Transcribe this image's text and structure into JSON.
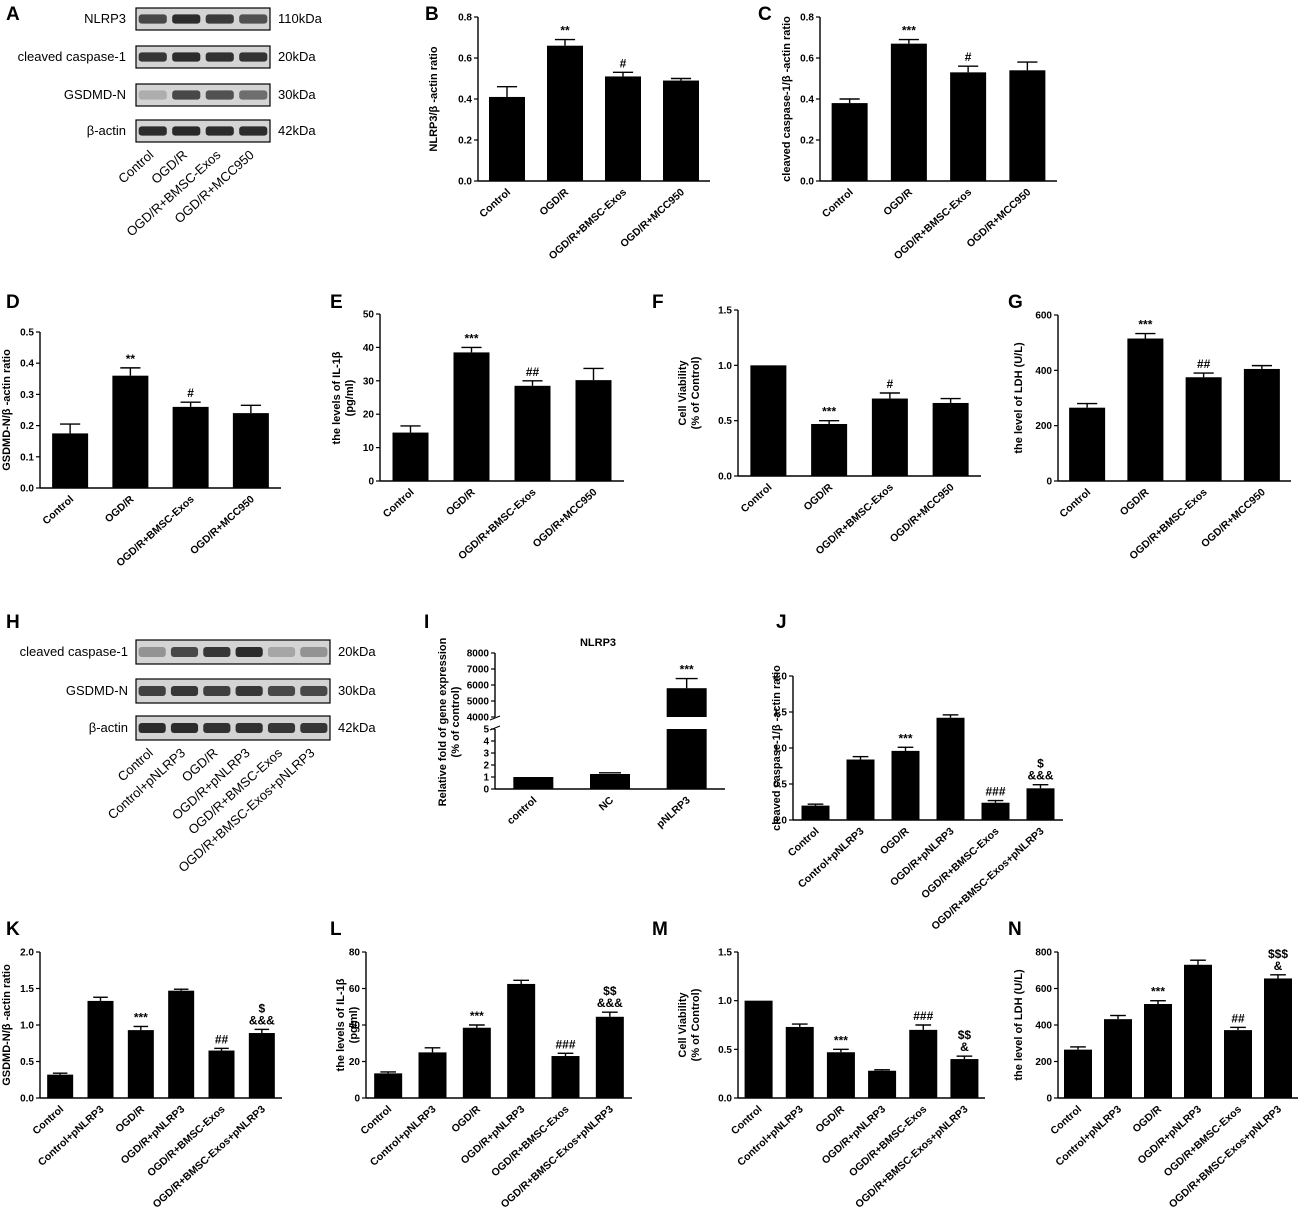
{
  "colors": {
    "bar": "#000000",
    "axis": "#000000",
    "blot_background": "#d4d4d4",
    "band": "#1a1a1a"
  },
  "panel_letters": [
    "A",
    "B",
    "C",
    "D",
    "E",
    "F",
    "G",
    "H",
    "I",
    "J",
    "K",
    "L",
    "M",
    "N"
  ],
  "blot_A": {
    "rows": [
      {
        "name": "NLRP3",
        "kda": "110kDa"
      },
      {
        "name": "cleaved caspase-1",
        "kda": "20kDa"
      },
      {
        "name": "GSDMD-N",
        "kda": "30kDa"
      },
      {
        "name": "β-actin",
        "kda": "42kDa"
      }
    ],
    "lanes": [
      "Control",
      "OGD/R",
      "OGD/R+BMSC-Exos",
      "OGD/R+MCC950"
    ]
  },
  "blot_H": {
    "rows": [
      {
        "name": "cleaved caspase-1",
        "kda": "20kDa"
      },
      {
        "name": "GSDMD-N",
        "kda": "30kDa"
      },
      {
        "name": "β-actin",
        "kda": "42kDa"
      }
    ],
    "lanes": [
      "Control",
      "Control+pNLRP3",
      "OGD/R",
      "OGD/R+pNLRP3",
      "OGD/R+BMSC-Exos",
      "OGD/R+BMSC-Exos+pNLRP3"
    ]
  },
  "chart_data": [
    {
      "panel": "B",
      "type": "bar",
      "categories": [
        "Control",
        "OGD/R",
        "OGD/R+BMSC-Exos",
        "OGD/R+MCC950"
      ],
      "values": [
        0.41,
        0.66,
        0.51,
        0.49
      ],
      "errors": [
        0.05,
        0.03,
        0.02,
        0.01
      ],
      "sig": [
        "",
        "**",
        "#",
        ""
      ],
      "ylabel": "NLRP3/β -actin ratio",
      "ylim": [
        0,
        0.8
      ],
      "yticks": [
        "0.0",
        "0.2",
        "0.4",
        "0.6",
        "0.8"
      ]
    },
    {
      "panel": "C",
      "type": "bar",
      "categories": [
        "Control",
        "OGD/R",
        "OGD/R+BMSC-Exos",
        "OGD/R+MCC950"
      ],
      "values": [
        0.38,
        0.67,
        0.53,
        0.54
      ],
      "errors": [
        0.02,
        0.02,
        0.03,
        0.04
      ],
      "sig": [
        "",
        "***",
        "#",
        ""
      ],
      "ylabel": "cleaved caspase-1/β -actin ratio",
      "ylim": [
        0,
        0.8
      ],
      "yticks": [
        "0.0",
        "0.2",
        "0.4",
        "0.6",
        "0.8"
      ]
    },
    {
      "panel": "D",
      "type": "bar",
      "categories": [
        "Control",
        "OGD/R",
        "OGD/R+BMSC-Exos",
        "OGD/R+MCC950"
      ],
      "values": [
        0.175,
        0.36,
        0.26,
        0.24
      ],
      "errors": [
        0.03,
        0.025,
        0.015,
        0.025
      ],
      "sig": [
        "",
        "**",
        "#",
        ""
      ],
      "ylabel": "GSDMD-N/β -actin ratio",
      "ylim": [
        0,
        0.5
      ],
      "yticks": [
        "0.0",
        "0.1",
        "0.2",
        "0.3",
        "0.4",
        "0.5"
      ]
    },
    {
      "panel": "E",
      "type": "bar",
      "categories": [
        "Control",
        "OGD/R",
        "OGD/R+BMSC-Exos",
        "OGD/R+MCC950"
      ],
      "values": [
        14.5,
        38.5,
        28.5,
        30.2
      ],
      "errors": [
        2,
        1.5,
        1.5,
        3.5
      ],
      "sig": [
        "",
        "***",
        "##",
        ""
      ],
      "ylabel": "the levels of IL-1β (pg/ml)",
      "ylim": [
        0,
        50
      ],
      "yticks": [
        "0",
        "10",
        "20",
        "30",
        "40",
        "50"
      ]
    },
    {
      "panel": "F",
      "type": "bar",
      "categories": [
        "Control",
        "OGD/R",
        "OGD/R+BMSC-Exos",
        "OGD/R+MCC950"
      ],
      "values": [
        1.0,
        0.47,
        0.7,
        0.66
      ],
      "errors": [
        0,
        0.03,
        0.05,
        0.04
      ],
      "sig": [
        "",
        "***",
        "#",
        ""
      ],
      "ylabel": "Cell Viability (% of Control)",
      "ylim": [
        0,
        1.5
      ],
      "yticks": [
        "0.0",
        "0.5",
        "1.0",
        "1.5"
      ]
    },
    {
      "panel": "G",
      "type": "bar",
      "categories": [
        "Control",
        "OGD/R",
        "OGD/R+BMSC-Exos",
        "OGD/R+MCC950"
      ],
      "values": [
        265,
        515,
        375,
        405
      ],
      "errors": [
        15,
        18,
        15,
        12
      ],
      "sig": [
        "",
        "***",
        "##",
        ""
      ],
      "ylabel": "the level of LDH (U/L)",
      "ylim": [
        0,
        600
      ],
      "yticks": [
        "0",
        "200",
        "400",
        "600"
      ]
    },
    {
      "panel": "I",
      "type": "bar",
      "title": "NLRP3",
      "categories": [
        "control",
        "NC",
        "pNLRP3"
      ],
      "values": [
        1,
        1.25,
        5800
      ],
      "errors": [
        0,
        0.1,
        600
      ],
      "sig": [
        "",
        "",
        "***"
      ],
      "ylabel": "Relative fold of gene expression (% of control)",
      "broken_axis": true,
      "yticks_low": [
        "0",
        "1",
        "2",
        "3",
        "4",
        "5"
      ],
      "yticks_high": [
        "4000",
        "5000",
        "6000",
        "7000",
        "8000"
      ]
    },
    {
      "panel": "J",
      "type": "bar",
      "categories": [
        "Control",
        "Control+pNLRP3",
        "OGD/R",
        "OGD/R+pNLRP3",
        "OGD/R+BMSC-Exos",
        "OGD/R+BMSC-Exos+pNLRP3"
      ],
      "values": [
        0.2,
        0.84,
        0.96,
        1.42,
        0.24,
        0.44
      ],
      "errors": [
        0.02,
        0.04,
        0.05,
        0.04,
        0.03,
        0.05
      ],
      "sig": [
        "",
        "",
        "***",
        "",
        "###",
        "$\n&&&"
      ],
      "ylabel": "cleaved caspase-1/β -actin ratio",
      "ylim": [
        0,
        2.0
      ],
      "yticks": [
        "0.0",
        "0.5",
        "1.0",
        "1.5",
        "2.0"
      ]
    },
    {
      "panel": "K",
      "type": "bar",
      "categories": [
        "Control",
        "Control+pNLRP3",
        "OGD/R",
        "OGD/R+pNLRP3",
        "OGD/R+BMSC-Exos",
        "OGD/R+BMSC-Exos+pNLRP3"
      ],
      "values": [
        0.32,
        1.33,
        0.93,
        1.47,
        0.65,
        0.89
      ],
      "errors": [
        0.02,
        0.05,
        0.05,
        0.02,
        0.03,
        0.05
      ],
      "sig": [
        "",
        "",
        "***",
        "",
        "##",
        "$\n&&&"
      ],
      "ylabel": "GSDMD-N/β -actin ratio",
      "ylim": [
        0,
        2.0
      ],
      "yticks": [
        "0.0",
        "0.5",
        "1.0",
        "1.5",
        "2.0"
      ]
    },
    {
      "panel": "L",
      "type": "bar",
      "categories": [
        "Control",
        "Control+pNLRP3",
        "OGD/R",
        "OGD/R+pNLRP3",
        "OGD/R+BMSC-Exos",
        "OGD/R+BMSC-Exos+pNLRP3"
      ],
      "values": [
        13.5,
        25,
        38.5,
        62.5,
        23,
        44.5
      ],
      "errors": [
        0.8,
        2.5,
        1.5,
        2,
        1.5,
        2.5
      ],
      "sig": [
        "",
        "",
        "***",
        "",
        "###",
        "$$\n&&&"
      ],
      "ylabel": "the levels of IL-1β (pg/ml)",
      "ylim": [
        0,
        80
      ],
      "yticks": [
        "0",
        "20",
        "40",
        "60",
        "80"
      ]
    },
    {
      "panel": "M",
      "type": "bar",
      "categories": [
        "Control",
        "Control+pNLRP3",
        "OGD/R",
        "OGD/R+pNLRP3",
        "OGD/R+BMSC-Exos",
        "OGD/R+BMSC-Exos+pNLRP3"
      ],
      "values": [
        1.0,
        0.73,
        0.47,
        0.28,
        0.7,
        0.4
      ],
      "errors": [
        0,
        0.03,
        0.03,
        0.01,
        0.05,
        0.03
      ],
      "sig": [
        "",
        "",
        "***",
        "",
        "###",
        "$$\n&"
      ],
      "ylabel": "Cell Viability (% of Control)",
      "ylim": [
        0,
        1.5
      ],
      "yticks": [
        "0.0",
        "0.5",
        "1.0",
        "1.5"
      ]
    },
    {
      "panel": "N",
      "type": "bar",
      "categories": [
        "Control",
        "Control+pNLRP3",
        "OGD/R",
        "OGD/R+pNLRP3",
        "OGD/R+BMSC-Exos",
        "OGD/R+BMSC-Exos+pNLRP3"
      ],
      "values": [
        265,
        432,
        515,
        730,
        372,
        655
      ],
      "errors": [
        15,
        20,
        18,
        25,
        15,
        20
      ],
      "sig": [
        "",
        "",
        "***",
        "",
        "##",
        "$$$\n&"
      ],
      "ylabel": "the level of LDH (U/L)",
      "ylim": [
        0,
        800
      ],
      "yticks": [
        "0",
        "200",
        "400",
        "600",
        "800"
      ]
    }
  ]
}
